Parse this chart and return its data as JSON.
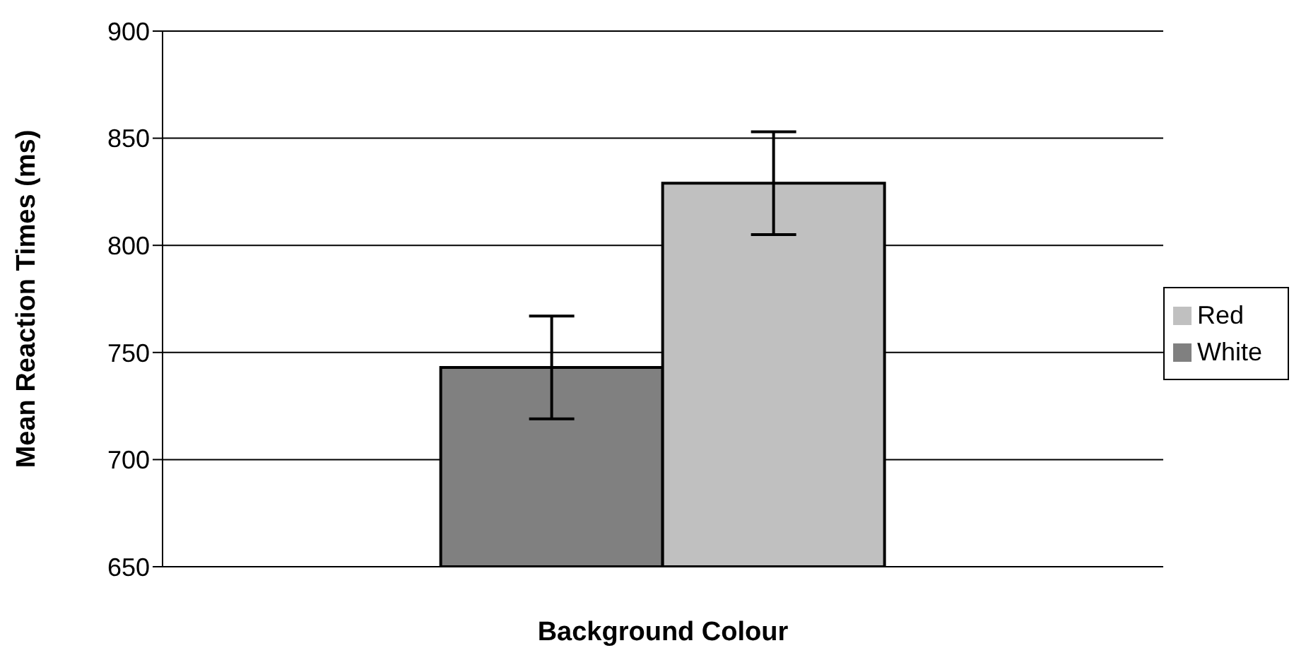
{
  "chart_data": {
    "type": "bar",
    "xlabel": "Background Colour",
    "ylabel": "Mean Reaction Times (ms)",
    "categories": [
      null
    ],
    "series": [
      {
        "name": "White",
        "color": "#808080",
        "values": [
          743
        ],
        "errors": [
          24
        ]
      },
      {
        "name": "Red",
        "color": "#c0c0c0",
        "values": [
          829
        ],
        "errors": [
          24
        ]
      }
    ],
    "ylim": [
      650,
      900
    ],
    "yticks": [
      650,
      700,
      750,
      800,
      850,
      900
    ],
    "grid": "y",
    "legend": "right"
  }
}
